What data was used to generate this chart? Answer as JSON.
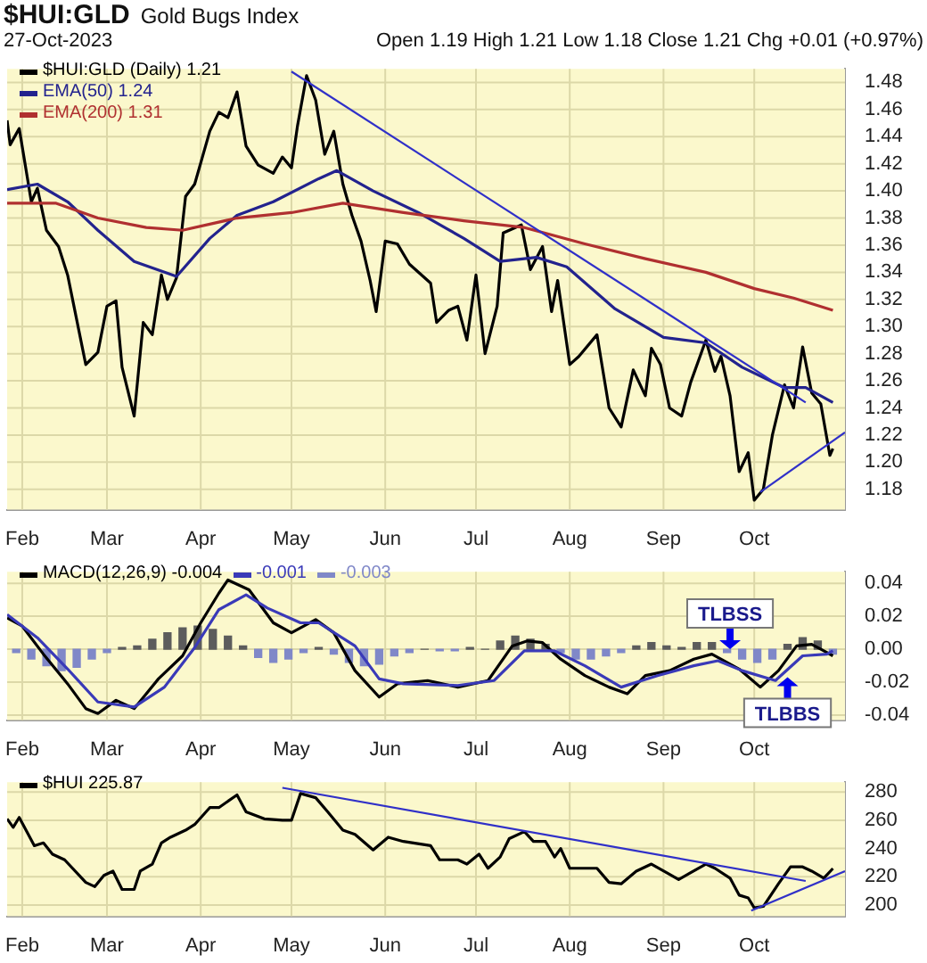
{
  "chart_data": [
    {
      "type": "line",
      "title": "$HUI:GLD",
      "subtitle": "Gold Bugs Index",
      "annotations": [
        "27-Oct-2023",
        "Open 1.19 High 1.21 Low 1.18 Close 1.21 Chg +0.01 (+0.97%)"
      ],
      "legend": "top left",
      "grid": true,
      "marker": "none",
      "xlim": [
        "2023-01-27",
        "2023-10-31"
      ],
      "xticks": [
        {
          "value": "2023-02-01",
          "label": "Feb"
        },
        {
          "value": "2023-03-01",
          "label": "Mar"
        },
        {
          "value": "2023-04-01",
          "label": "Apr"
        },
        {
          "value": "2023-05-01",
          "label": "May"
        },
        {
          "value": "2023-06-01",
          "label": "Jun"
        },
        {
          "value": "2023-07-01",
          "label": "Jul"
        },
        {
          "value": "2023-08-01",
          "label": "Aug"
        },
        {
          "value": "2023-09-01",
          "label": "Sep"
        },
        {
          "value": "2023-10-01",
          "label": "Oct"
        }
      ],
      "ylim": [
        1.165,
        1.49
      ],
      "yticks": [
        {
          "value": 1.18,
          "label": "1.18"
        },
        {
          "value": 1.2,
          "label": "1.20"
        },
        {
          "value": 1.22,
          "label": "1.22"
        },
        {
          "value": 1.24,
          "label": "1.24"
        },
        {
          "value": 1.26,
          "label": "1.26"
        },
        {
          "value": 1.28,
          "label": "1.28"
        },
        {
          "value": 1.3,
          "label": "1.30"
        },
        {
          "value": 1.32,
          "label": "1.32"
        },
        {
          "value": 1.34,
          "label": "1.34"
        },
        {
          "value": 1.36,
          "label": "1.36"
        },
        {
          "value": 1.38,
          "label": "1.38"
        },
        {
          "value": 1.4,
          "label": "1.40"
        },
        {
          "value": 1.42,
          "label": "1.42"
        },
        {
          "value": 1.44,
          "label": "1.44"
        },
        {
          "value": 1.46,
          "label": "1.46"
        },
        {
          "value": 1.48,
          "label": "1.48"
        }
      ],
      "series": [
        {
          "name": "$HUI:GLD (Daily) 1.21",
          "color": "#000000",
          "x": [
            "2023-01-27",
            "2023-01-28",
            "2023-01-31",
            "2023-02-04",
            "2023-02-06",
            "2023-02-09",
            "2023-02-13",
            "2023-02-16",
            "2023-02-22",
            "2023-02-26",
            "2023-03-01",
            "2023-03-04",
            "2023-03-06",
            "2023-03-10",
            "2023-03-13",
            "2023-03-16",
            "2023-03-19",
            "2023-03-21",
            "2023-03-24",
            "2023-03-27",
            "2023-03-30",
            "2023-04-04",
            "2023-04-07",
            "2023-04-10",
            "2023-04-13",
            "2023-04-16",
            "2023-04-20",
            "2023-04-25",
            "2023-04-28",
            "2023-05-01",
            "2023-05-03",
            "2023-05-06",
            "2023-05-09",
            "2023-05-12",
            "2023-05-15",
            "2023-05-18",
            "2023-05-21",
            "2023-05-24",
            "2023-05-27",
            "2023-05-29",
            "2023-06-01",
            "2023-06-05",
            "2023-06-09",
            "2023-06-16",
            "2023-06-18",
            "2023-06-22",
            "2023-06-25",
            "2023-06-28",
            "2023-07-01",
            "2023-07-04",
            "2023-07-08",
            "2023-07-10",
            "2023-07-14",
            "2023-07-16",
            "2023-07-19",
            "2023-07-23",
            "2023-07-26",
            "2023-07-28",
            "2023-08-01",
            "2023-08-04",
            "2023-08-10",
            "2023-08-14",
            "2023-08-18",
            "2023-08-22",
            "2023-08-26",
            "2023-08-28",
            "2023-08-31",
            "2023-09-03",
            "2023-09-07",
            "2023-09-10",
            "2023-09-15",
            "2023-09-18",
            "2023-09-20",
            "2023-09-23",
            "2023-09-26",
            "2023-09-29",
            "2023-10-01",
            "2023-10-04",
            "2023-10-07",
            "2023-10-11",
            "2023-10-14",
            "2023-10-17",
            "2023-10-20",
            "2023-10-23",
            "2023-10-26",
            "2023-10-27"
          ],
          "values": [
            1.452,
            1.434,
            1.446,
            1.392,
            1.402,
            1.371,
            1.359,
            1.338,
            1.272,
            1.281,
            1.315,
            1.319,
            1.27,
            1.234,
            1.303,
            1.294,
            1.338,
            1.32,
            1.336,
            1.396,
            1.405,
            1.444,
            1.458,
            1.454,
            1.473,
            1.433,
            1.419,
            1.413,
            1.425,
            1.417,
            1.448,
            1.485,
            1.467,
            1.427,
            1.444,
            1.405,
            1.382,
            1.363,
            1.334,
            1.311,
            1.363,
            1.361,
            1.346,
            1.332,
            1.303,
            1.312,
            1.315,
            1.29,
            1.338,
            1.28,
            1.315,
            1.369,
            1.373,
            1.375,
            1.342,
            1.359,
            1.311,
            1.334,
            1.272,
            1.278,
            1.294,
            1.24,
            1.226,
            1.268,
            1.249,
            1.284,
            1.272,
            1.24,
            1.234,
            1.259,
            1.29,
            1.267,
            1.278,
            1.249,
            1.193,
            1.207,
            1.172,
            1.18,
            1.22,
            1.257,
            1.24,
            1.285,
            1.251,
            1.243,
            1.205,
            1.21
          ]
        },
        {
          "name": "EMA(50) 1.24",
          "color": "#23238e",
          "x": [
            "2023-01-27",
            "2023-02-06",
            "2023-02-16",
            "2023-02-26",
            "2023-03-10",
            "2023-03-24",
            "2023-04-04",
            "2023-04-13",
            "2023-04-25",
            "2023-05-10",
            "2023-05-16",
            "2023-05-28",
            "2023-06-12",
            "2023-06-27",
            "2023-07-09",
            "2023-07-21",
            "2023-07-31",
            "2023-08-16",
            "2023-09-01",
            "2023-09-15",
            "2023-09-27",
            "2023-10-11",
            "2023-10-18",
            "2023-10-27"
          ],
          "values": [
            1.401,
            1.405,
            1.392,
            1.371,
            1.348,
            1.337,
            1.365,
            1.382,
            1.392,
            1.409,
            1.415,
            1.4,
            1.384,
            1.365,
            1.348,
            1.351,
            1.344,
            1.313,
            1.292,
            1.288,
            1.27,
            1.255,
            1.255,
            1.244
          ]
        },
        {
          "name": "EMA(200) 1.31",
          "color": "#b03030",
          "x": [
            "2023-01-27",
            "2023-02-12",
            "2023-02-26",
            "2023-03-14",
            "2023-03-26",
            "2023-04-13",
            "2023-05-01",
            "2023-05-18",
            "2023-06-07",
            "2023-06-27",
            "2023-07-17",
            "2023-08-06",
            "2023-08-26",
            "2023-09-15",
            "2023-10-01",
            "2023-10-14",
            "2023-10-27"
          ],
          "values": [
            1.391,
            1.391,
            1.38,
            1.373,
            1.371,
            1.38,
            1.384,
            1.391,
            1.384,
            1.378,
            1.373,
            1.361,
            1.35,
            1.34,
            1.328,
            1.321,
            1.312
          ]
        },
        {
          "type": "line",
          "color": "#3030c8",
          "x": [
            "2023-05-01",
            "2023-10-18"
          ],
          "values": [
            1.488,
            1.244
          ]
        },
        {
          "type": "line",
          "color": "#3030c8",
          "x": [
            "2023-10-03",
            "2023-10-31"
          ],
          "values": [
            1.178,
            1.222
          ]
        }
      ]
    },
    {
      "type": "line",
      "legend": "top left",
      "grid": true,
      "marker": "none",
      "annotations": [
        {
          "text": "TLBSS",
          "x": "2023-09-23",
          "y": 0.0
        },
        {
          "text": "TLBBS",
          "x": "2023-10-12",
          "y": -0.017
        }
      ],
      "xlim": [
        "2023-01-27",
        "2023-10-31"
      ],
      "xticks": [
        {
          "value": "2023-02-01",
          "label": "Feb"
        },
        {
          "value": "2023-03-01",
          "label": "Mar"
        },
        {
          "value": "2023-04-01",
          "label": "Apr"
        },
        {
          "value": "2023-05-01",
          "label": "May"
        },
        {
          "value": "2023-06-01",
          "label": "Jun"
        },
        {
          "value": "2023-07-01",
          "label": "Jul"
        },
        {
          "value": "2023-08-01",
          "label": "Aug"
        },
        {
          "value": "2023-09-01",
          "label": "Sep"
        },
        {
          "value": "2023-10-01",
          "label": "Oct"
        }
      ],
      "ylim": [
        -0.043,
        0.047
      ],
      "yticks": [
        {
          "value": -0.04,
          "label": "-0.04"
        },
        {
          "value": -0.02,
          "label": "-0.02"
        },
        {
          "value": 0,
          "label": "0.00"
        },
        {
          "value": 0.02,
          "label": "0.02"
        },
        {
          "value": 0.04,
          "label": "0.04"
        }
      ],
      "series": [
        {
          "type": "bar",
          "name": "-0.003",
          "x": [
            "2023-01-30",
            "2023-02-04",
            "2023-02-09",
            "2023-02-14",
            "2023-02-19",
            "2023-02-24",
            "2023-03-01",
            "2023-03-06",
            "2023-03-11",
            "2023-03-16",
            "2023-03-21",
            "2023-03-26",
            "2023-03-31",
            "2023-04-05",
            "2023-04-10",
            "2023-04-15",
            "2023-04-20",
            "2023-04-25",
            "2023-04-30",
            "2023-05-05",
            "2023-05-10",
            "2023-05-15",
            "2023-05-20",
            "2023-05-25",
            "2023-05-30",
            "2023-06-04",
            "2023-06-09",
            "2023-06-14",
            "2023-06-19",
            "2023-06-24",
            "2023-06-29",
            "2023-07-04",
            "2023-07-09",
            "2023-07-14",
            "2023-07-19",
            "2023-07-24",
            "2023-07-29",
            "2023-08-03",
            "2023-08-08",
            "2023-08-13",
            "2023-08-18",
            "2023-08-23",
            "2023-08-28",
            "2023-09-02",
            "2023-09-07",
            "2023-09-12",
            "2023-09-17",
            "2023-09-22",
            "2023-09-27",
            "2023-10-02",
            "2023-10-07",
            "2023-10-12",
            "2023-10-17",
            "2023-10-22",
            "2023-10-27"
          ],
          "values": [
            -0.002,
            -0.006,
            -0.01,
            -0.013,
            -0.011,
            -0.006,
            -0.002,
            0.001,
            0.002,
            0.006,
            0.01,
            0.013,
            0.014,
            0.012,
            0.008,
            0.002,
            -0.005,
            -0.008,
            -0.006,
            -0.002,
            0.001,
            -0.003,
            -0.008,
            -0.01,
            -0.009,
            -0.004,
            -0.002,
            0.0,
            -0.001,
            -0.001,
            0.001,
            0.0,
            0.005,
            0.008,
            0.006,
            0.003,
            -0.002,
            -0.006,
            -0.006,
            -0.004,
            -0.002,
            0.002,
            0.004,
            0.002,
            0.001,
            0.004,
            0.004,
            -0.002,
            -0.006,
            -0.008,
            -0.006,
            0.003,
            0.007,
            0.005,
            -0.003
          ],
          "colors": [
            "#8088c8",
            "#8088c8",
            "#8088c8",
            "#8088c8",
            "#8088c8",
            "#8088c8",
            "#8088c8",
            "#5c5c5c",
            "#5c5c5c",
            "#5c5c5c",
            "#5c5c5c",
            "#5c5c5c",
            "#5c5c5c",
            "#5c5c5c",
            "#5c5c5c",
            "#5c5c5c",
            "#8088c8",
            "#8088c8",
            "#8088c8",
            "#8088c8",
            "#5c5c5c",
            "#8088c8",
            "#8088c8",
            "#8088c8",
            "#8088c8",
            "#8088c8",
            "#8088c8",
            "#5c5c5c",
            "#8088c8",
            "#8088c8",
            "#5c5c5c",
            "#5c5c5c",
            "#5c5c5c",
            "#5c5c5c",
            "#5c5c5c",
            "#5c5c5c",
            "#8088c8",
            "#8088c8",
            "#8088c8",
            "#8088c8",
            "#8088c8",
            "#5c5c5c",
            "#5c5c5c",
            "#5c5c5c",
            "#5c5c5c",
            "#5c5c5c",
            "#5c5c5c",
            "#8088c8",
            "#8088c8",
            "#8088c8",
            "#8088c8",
            "#5c5c5c",
            "#5c5c5c",
            "#5c5c5c",
            "#8088c8"
          ]
        },
        {
          "name": "MACD(12,26,9) -0.004",
          "color": "#000000",
          "x": [
            "2023-01-27",
            "2023-02-01",
            "2023-02-08",
            "2023-02-16",
            "2023-02-22",
            "2023-02-26",
            "2023-03-04",
            "2023-03-10",
            "2023-03-18",
            "2023-03-26",
            "2023-04-01",
            "2023-04-07",
            "2023-04-10",
            "2023-04-17",
            "2023-04-25",
            "2023-05-01",
            "2023-05-09",
            "2023-05-15",
            "2023-05-22",
            "2023-05-30",
            "2023-06-05",
            "2023-06-15",
            "2023-06-25",
            "2023-07-05",
            "2023-07-13",
            "2023-07-18",
            "2023-07-23",
            "2023-07-29",
            "2023-08-06",
            "2023-08-14",
            "2023-08-20",
            "2023-08-26",
            "2023-09-03",
            "2023-09-11",
            "2023-09-17",
            "2023-09-26",
            "2023-10-03",
            "2023-10-09",
            "2023-10-15",
            "2023-10-20",
            "2023-10-24",
            "2023-10-27"
          ],
          "values": [
            0.019,
            0.014,
            -0.003,
            -0.021,
            -0.036,
            -0.039,
            -0.031,
            -0.036,
            -0.018,
            -0.004,
            0.016,
            0.034,
            0.042,
            0.036,
            0.016,
            0.01,
            0.018,
            0.01,
            -0.013,
            -0.029,
            -0.021,
            -0.019,
            -0.023,
            -0.019,
            0.002,
            0.005,
            0.004,
            -0.006,
            -0.016,
            -0.023,
            -0.027,
            -0.016,
            -0.013,
            -0.006,
            -0.003,
            -0.012,
            -0.023,
            -0.013,
            0.002,
            0.003,
            -0.001,
            -0.004
          ]
        },
        {
          "name": "-0.001",
          "color": "#3a3ab8",
          "x": [
            "2023-01-27",
            "2023-02-06",
            "2023-02-16",
            "2023-02-26",
            "2023-03-10",
            "2023-03-20",
            "2023-03-30",
            "2023-04-07",
            "2023-04-16",
            "2023-04-23",
            "2023-05-04",
            "2023-05-10",
            "2023-05-22",
            "2023-05-30",
            "2023-06-07",
            "2023-06-25",
            "2023-07-07",
            "2023-07-17",
            "2023-07-27",
            "2023-08-06",
            "2023-08-18",
            "2023-08-30",
            "2023-09-11",
            "2023-09-19",
            "2023-09-27",
            "2023-10-08",
            "2023-10-17",
            "2023-10-25",
            "2023-10-27"
          ],
          "values": [
            0.021,
            0.007,
            -0.012,
            -0.032,
            -0.035,
            -0.023,
            0.001,
            0.024,
            0.033,
            0.025,
            0.016,
            0.016,
            0.002,
            -0.018,
            -0.021,
            -0.022,
            -0.019,
            -0.001,
            -0.001,
            -0.01,
            -0.023,
            -0.016,
            -0.01,
            -0.007,
            -0.013,
            -0.019,
            -0.004,
            -0.003,
            -0.001
          ]
        }
      ]
    },
    {
      "type": "line",
      "legend": "top left",
      "grid": true,
      "marker": "none",
      "xlim": [
        "2023-01-27",
        "2023-10-31"
      ],
      "xticks": [
        {
          "value": "2023-02-01",
          "label": "Feb"
        },
        {
          "value": "2023-03-01",
          "label": "Mar"
        },
        {
          "value": "2023-04-01",
          "label": "Apr"
        },
        {
          "value": "2023-05-01",
          "label": "May"
        },
        {
          "value": "2023-06-01",
          "label": "Jun"
        },
        {
          "value": "2023-07-01",
          "label": "Jul"
        },
        {
          "value": "2023-08-01",
          "label": "Aug"
        },
        {
          "value": "2023-09-01",
          "label": "Sep"
        },
        {
          "value": "2023-10-01",
          "label": "Oct"
        }
      ],
      "ylim": [
        192,
        287
      ],
      "yticks": [
        200,
        220,
        240,
        260,
        280
      ],
      "series": [
        {
          "name": "$HUI 225.87",
          "color": "#000000",
          "x": [
            "2023-01-27",
            "2023-01-29",
            "2023-01-31",
            "2023-02-05",
            "2023-02-08",
            "2023-02-11",
            "2023-02-15",
            "2023-02-22",
            "2023-02-25",
            "2023-02-28",
            "2023-03-03",
            "2023-03-06",
            "2023-03-10",
            "2023-03-12",
            "2023-03-16",
            "2023-03-19",
            "2023-03-22",
            "2023-03-27",
            "2023-03-30",
            "2023-04-04",
            "2023-04-07",
            "2023-04-13",
            "2023-04-16",
            "2023-04-22",
            "2023-04-28",
            "2023-05-01",
            "2023-05-04",
            "2023-05-09",
            "2023-05-13",
            "2023-05-18",
            "2023-05-22",
            "2023-05-28",
            "2023-06-02",
            "2023-06-07",
            "2023-06-16",
            "2023-06-19",
            "2023-06-25",
            "2023-06-28",
            "2023-07-02",
            "2023-07-05",
            "2023-07-09",
            "2023-07-12",
            "2023-07-17",
            "2023-07-20",
            "2023-07-24",
            "2023-07-27",
            "2023-07-29",
            "2023-08-01",
            "2023-08-06",
            "2023-08-10",
            "2023-08-14",
            "2023-08-18",
            "2023-08-23",
            "2023-08-28",
            "2023-09-02",
            "2023-09-06",
            "2023-09-10",
            "2023-09-15",
            "2023-09-18",
            "2023-09-23",
            "2023-09-26",
            "2023-09-29",
            "2023-10-01",
            "2023-10-04",
            "2023-10-09",
            "2023-10-13",
            "2023-10-17",
            "2023-10-20",
            "2023-10-24",
            "2023-10-27"
          ],
          "values": [
            261,
            255,
            262,
            242,
            244,
            236,
            232,
            216,
            213,
            221,
            224,
            211,
            211,
            224,
            229,
            244,
            248,
            253,
            257,
            269,
            269,
            278,
            266,
            261,
            260,
            260,
            279,
            276,
            266,
            253,
            250,
            239,
            248,
            245,
            242,
            232,
            232,
            229,
            236,
            226,
            234,
            247,
            252,
            245,
            245,
            234,
            240,
            226,
            226,
            226,
            216,
            215,
            224,
            229,
            223,
            218,
            223,
            229,
            226,
            219,
            207,
            205,
            198,
            199,
            215,
            227,
            227,
            224,
            219,
            225.87
          ]
        },
        {
          "type": "line",
          "color": "#3030c8",
          "x": [
            "2023-04-28",
            "2023-10-18"
          ],
          "values": [
            283,
            217
          ]
        },
        {
          "type": "line",
          "color": "#3030c8",
          "x": [
            "2023-09-30",
            "2023-10-31"
          ],
          "values": [
            196,
            224
          ]
        }
      ]
    }
  ]
}
